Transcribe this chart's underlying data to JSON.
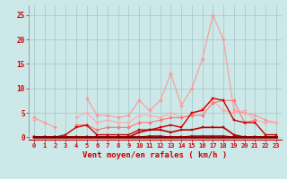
{
  "x": [
    0,
    1,
    2,
    3,
    4,
    5,
    6,
    7,
    8,
    9,
    10,
    11,
    12,
    13,
    14,
    15,
    16,
    17,
    18,
    19,
    20,
    21,
    22,
    23
  ],
  "bg_color": "#cce8e8",
  "grid_color": "#aacccc",
  "xlabel": "Vent moyen/en rafales ( km/h )",
  "xlabel_color": "#cc0000",
  "tick_color": "#cc0000",
  "ylim": [
    -0.5,
    27
  ],
  "yticks": [
    0,
    5,
    10,
    15,
    20,
    25
  ],
  "line1": {
    "y": [
      4.0,
      3.0,
      2.0,
      null,
      null,
      8.0,
      4.5,
      4.5,
      4.0,
      4.5,
      7.5,
      5.5,
      7.5,
      13.0,
      6.5,
      10.0,
      16.0,
      25.0,
      20.0,
      5.5,
      5.0,
      4.5,
      3.5,
      3.0
    ],
    "color": "#ff9999",
    "lw": 0.8,
    "marker": "D",
    "ms": 2.0
  },
  "line2": {
    "y": [
      3.5,
      null,
      null,
      null,
      4.0,
      5.0,
      3.0,
      3.5,
      3.0,
      3.0,
      4.5,
      4.5,
      4.0,
      5.0,
      4.0,
      4.5,
      6.0,
      7.5,
      5.5,
      5.0,
      5.5,
      3.5,
      3.0,
      3.0
    ],
    "color": "#ffaaaa",
    "lw": 0.8,
    "marker": "D",
    "ms": 2.0
  },
  "line3": {
    "y": [
      null,
      null,
      null,
      null,
      2.5,
      2.5,
      1.5,
      2.0,
      2.0,
      2.0,
      3.0,
      3.0,
      3.5,
      4.0,
      4.0,
      4.5,
      4.5,
      7.0,
      7.5,
      7.5,
      3.0,
      3.5,
      null,
      null
    ],
    "color": "#ff7777",
    "lw": 0.8,
    "marker": "D",
    "ms": 2.0
  },
  "line4": {
    "y": [
      0,
      0,
      0,
      0.5,
      2.0,
      2.5,
      0.5,
      0.5,
      0.5,
      0.5,
      1.5,
      1.5,
      2.0,
      2.5,
      2.0,
      5.0,
      5.5,
      8.0,
      7.5,
      3.5,
      3.0,
      3.0,
      0.5,
      0.5
    ],
    "color": "#cc0000",
    "lw": 1.0,
    "marker": "s",
    "ms": 2.0
  },
  "line5": {
    "y": [
      0,
      0,
      0,
      0,
      0,
      0,
      0,
      0,
      0,
      0,
      0,
      0.3,
      0.3,
      0,
      0,
      0.3,
      0.3,
      0.3,
      0.3,
      0,
      0,
      0,
      0,
      0
    ],
    "color": "#dd2222",
    "lw": 0.8,
    "marker": "s",
    "ms": 1.5
  },
  "line6": {
    "y": [
      0,
      0,
      0,
      0,
      0,
      0,
      0,
      0,
      0,
      0,
      1.0,
      1.5,
      1.5,
      1.0,
      1.5,
      1.5,
      2.0,
      2.0,
      2.0,
      0.5,
      0,
      0,
      0,
      0
    ],
    "color": "#bb0000",
    "lw": 1.2,
    "marker": "s",
    "ms": 2.0
  },
  "line7": {
    "y": [
      0,
      0,
      0,
      0,
      0,
      0,
      0,
      0,
      0,
      0,
      0,
      0,
      0,
      0,
      0,
      0,
      0,
      0,
      0,
      0,
      0,
      0,
      0,
      0
    ],
    "color": "#880000",
    "lw": 2.0,
    "marker": "s",
    "ms": 1.5
  }
}
